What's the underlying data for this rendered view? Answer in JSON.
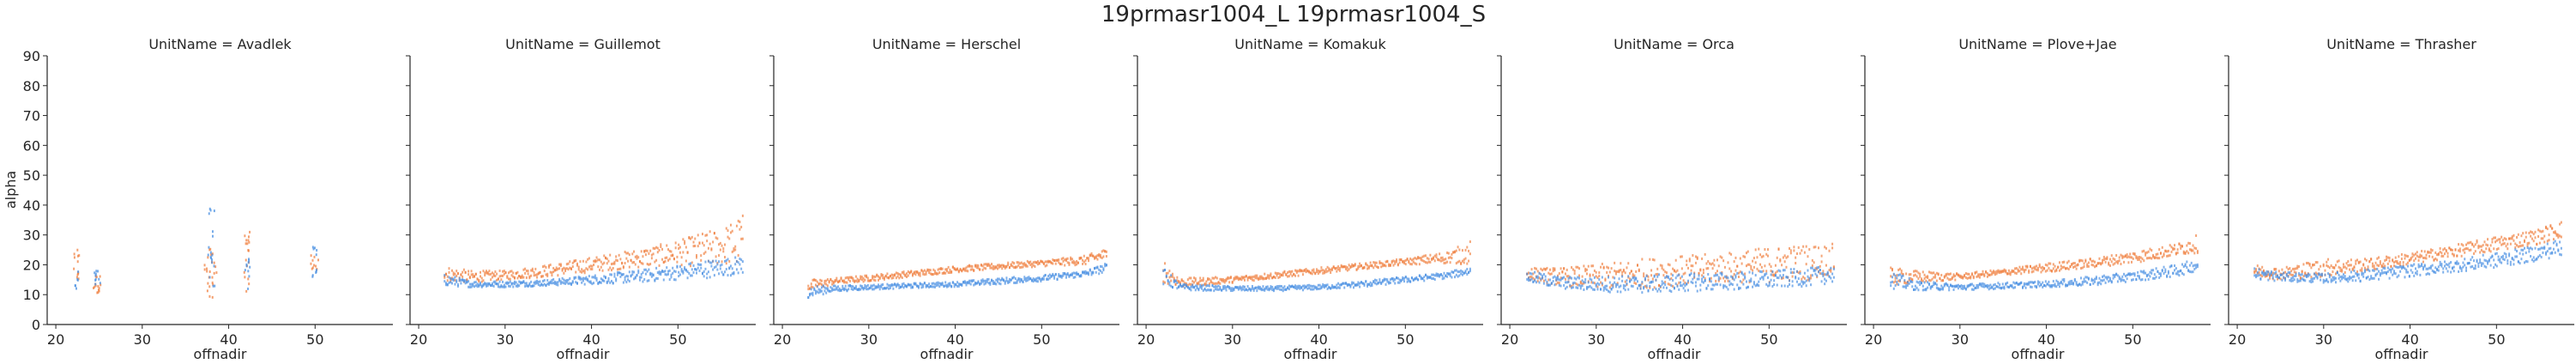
{
  "chart_data": {
    "type": "scatter",
    "title": "19prmasr1004_L 19prmasr1004_S",
    "xlabel": "offnadir",
    "ylabel": "alpha",
    "xlim": [
      19,
      59
    ],
    "ylim": [
      0,
      90
    ],
    "xticks": [
      20,
      30,
      40,
      50
    ],
    "yticks": [
      0,
      10,
      20,
      30,
      40,
      50,
      60,
      70,
      80,
      90
    ],
    "grid": false,
    "colors": {
      "series_L": "#f08040",
      "series_S": "#4a90e2",
      "axis": "#262626"
    },
    "panels": [
      {
        "title": "UnitName = Avadlek",
        "series": [
          {
            "color": "#f08040",
            "clusters": [
              {
                "x0": 22,
                "x1": 22.8,
                "ylo": 13,
                "yhi": 25,
                "n": 12
              },
              {
                "x0": 24.2,
                "x1": 25.2,
                "ylo": 10,
                "yhi": 17,
                "n": 14
              },
              {
                "x0": 37.2,
                "x1": 38.6,
                "ylo": 9,
                "yhi": 26,
                "n": 24
              },
              {
                "x0": 41.8,
                "x1": 42.6,
                "ylo": 11,
                "yhi": 31,
                "n": 18
              },
              {
                "x0": 49.4,
                "x1": 50.4,
                "ylo": 16,
                "yhi": 24,
                "n": 10
              }
            ]
          },
          {
            "color": "#4a90e2",
            "clusters": [
              {
                "x0": 22.2,
                "x1": 22.7,
                "ylo": 12,
                "yhi": 20,
                "n": 6
              },
              {
                "x0": 24.4,
                "x1": 25.2,
                "ylo": 12,
                "yhi": 18,
                "n": 10
              },
              {
                "x0": 37.6,
                "x1": 38.4,
                "ylo": 12,
                "yhi": 40,
                "n": 18
              },
              {
                "x0": 41.9,
                "x1": 42.5,
                "ylo": 11,
                "yhi": 22,
                "n": 10
              },
              {
                "x0": 49.6,
                "x1": 50.3,
                "ylo": 15,
                "yhi": 27,
                "n": 10
              }
            ]
          }
        ]
      },
      {
        "title": "UnitName = Guillemot",
        "series": [
          {
            "color": "#f08040",
            "x": [
              23,
              26,
              30,
              35,
              40,
              45,
              50,
              53,
              55,
              57.5
            ],
            "y": [
              17,
              16,
              16.5,
              18,
              20,
              22,
              24,
              25,
              26,
              28
            ],
            "spread": [
              2.5,
              2,
              1.5,
              2,
              2.5,
              3,
              4,
              6,
              6,
              9
            ]
          },
          {
            "color": "#4a90e2",
            "x": [
              23,
              26,
              30,
              35,
              40,
              45,
              50,
              53,
              55,
              57.5
            ],
            "y": [
              15,
              13.5,
              13.5,
              14,
              15,
              16,
              17.5,
              18.5,
              19,
              20
            ],
            "spread": [
              2,
              1,
              1,
              1,
              1.5,
              2,
              2.5,
              3,
              3,
              3
            ]
          }
        ]
      },
      {
        "title": "UnitName = Herschel",
        "series": [
          {
            "color": "#f08040",
            "x": [
              23,
              26,
              30,
              35,
              40,
              45,
              50,
              55,
              57.5
            ],
            "y": [
              13,
              14.5,
              15.5,
              17,
              18.5,
              19.5,
              20.5,
              21.5,
              23.5
            ],
            "spread": [
              2,
              1,
              1,
              1,
              1,
              1,
              1,
              1.5,
              2
            ]
          },
          {
            "color": "#4a90e2",
            "x": [
              23,
              26,
              30,
              35,
              40,
              45,
              50,
              55,
              57.5
            ],
            "y": [
              11,
              12,
              12.5,
              13,
              13.5,
              14.5,
              15.5,
              17,
              19
            ],
            "spread": [
              2,
              1,
              0.8,
              0.8,
              0.8,
              1,
              1,
              1,
              1.5
            ]
          }
        ]
      },
      {
        "title": "UnitName = Komakuk",
        "series": [
          {
            "color": "#f08040",
            "x": [
              22,
              24,
              30,
              35,
              40,
              45,
              50,
              55,
              57.5
            ],
            "y": [
              18,
              14,
              15,
              16.5,
              18,
              19.5,
              21,
              22.5,
              24
            ],
            "spread": [
              4,
              1.5,
              1,
              1,
              1,
              1,
              1,
              2,
              4
            ]
          },
          {
            "color": "#4a90e2",
            "x": [
              22,
              24,
              30,
              35,
              40,
              45,
              50,
              55,
              57.5
            ],
            "y": [
              16,
              12.5,
              12,
              12,
              12.5,
              13.5,
              15,
              16.5,
              18
            ],
            "spread": [
              3,
              1,
              0.8,
              0.8,
              0.8,
              1,
              1,
              1,
              1.5
            ]
          }
        ]
      },
      {
        "title": "UnitName = Orca",
        "series": [
          {
            "color": "#f08040",
            "x": [
              22,
              26,
              30,
              35,
              40,
              45,
              50,
              55,
              57.5
            ],
            "y": [
              17,
              16,
              16,
              17,
              18,
              19,
              20,
              21,
              22
            ],
            "spread": [
              2,
              3,
              4,
              5,
              5,
              5,
              6,
              6,
              5
            ]
          },
          {
            "color": "#4a90e2",
            "x": [
              22,
              26,
              30,
              35,
              40,
              45,
              50,
              55,
              57.5
            ],
            "y": [
              16,
              14,
              13.5,
              13.5,
              14,
              14.5,
              15,
              16,
              17
            ],
            "spread": [
              2,
              2,
              2.5,
              3,
              3,
              3,
              3,
              3,
              3
            ]
          }
        ]
      },
      {
        "title": "UnitName = Plove+Jae",
        "series": [
          {
            "color": "#f08040",
            "x": [
              22,
              25,
              30,
              35,
              40,
              45,
              50,
              55,
              57.5
            ],
            "y": [
              16,
              16,
              16,
              17.5,
              19,
              20.5,
              22.5,
              25,
              27
            ],
            "spread": [
              3,
              2,
              1,
              1,
              1.5,
              1.5,
              2,
              2,
              3
            ]
          },
          {
            "color": "#4a90e2",
            "x": [
              22,
              25,
              30,
              35,
              40,
              45,
              50,
              55,
              57.5
            ],
            "y": [
              15,
              13,
              12.5,
              13,
              13.5,
              14.5,
              16,
              18,
              20
            ],
            "spread": [
              3,
              1.5,
              1,
              1,
              1,
              1.5,
              1.5,
              2,
              2
            ]
          }
        ]
      },
      {
        "title": "UnitName = Thrasher",
        "series": [
          {
            "color": "#f08040",
            "x": [
              22,
              25,
              30,
              35,
              40,
              45,
              50,
              55,
              57.5
            ],
            "y": [
              18,
              17,
              19,
              20,
              22,
              24.5,
              27,
              29.5,
              32
            ],
            "spread": [
              2,
              2,
              3,
              2,
              2,
              2,
              2.5,
              2.5,
              3
            ]
          },
          {
            "color": "#4a90e2",
            "x": [
              22,
              25,
              30,
              35,
              40,
              45,
              50,
              55,
              57.5
            ],
            "y": [
              17,
              16,
              15.5,
              16.5,
              18,
              19.5,
              21.5,
              24,
              26
            ],
            "spread": [
              2,
              1.5,
              1.5,
              2,
              2,
              2,
              2.5,
              2.5,
              3
            ]
          }
        ]
      }
    ]
  }
}
